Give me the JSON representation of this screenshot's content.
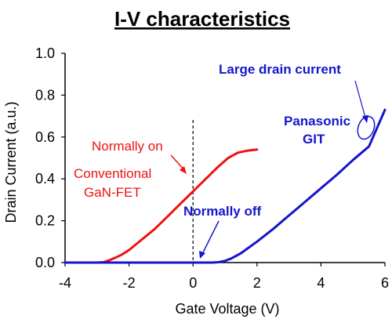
{
  "chart_data": {
    "type": "line",
    "title": "I-V characteristics",
    "xlabel": "Gate Voltage  (V)",
    "ylabel": "Drain Current  (a.u.)",
    "xlim": [
      -4,
      6
    ],
    "ylim": [
      0,
      1.0
    ],
    "x_ticks": [
      "-4",
      "-2",
      "0",
      "2",
      "4",
      "6"
    ],
    "y_ticks": [
      "0.0",
      "0.2",
      "0.4",
      "0.6",
      "0.8",
      "1.0"
    ],
    "grid": false,
    "reference_line": {
      "x": 0,
      "style": "dashed"
    },
    "series": [
      {
        "color": "#ee1111",
        "x": [
          -4.0,
          -3.0,
          -2.8,
          -2.6,
          -2.4,
          -2.2,
          -2.0,
          -1.6,
          -1.2,
          -0.8,
          -0.4,
          0.0,
          0.4,
          0.8,
          1.1,
          1.4,
          1.7,
          2.0
        ],
        "y": [
          0.0,
          0.0,
          0.002,
          0.012,
          0.025,
          0.04,
          0.06,
          0.11,
          0.16,
          0.22,
          0.28,
          0.34,
          0.4,
          0.46,
          0.5,
          0.525,
          0.535,
          0.54
        ]
      },
      {
        "color": "#1515cc",
        "x": [
          -4.0,
          0.0,
          0.6,
          0.8,
          1.0,
          1.2,
          1.5,
          2.0,
          2.5,
          3.0,
          3.5,
          4.0,
          4.5,
          5.0,
          5.5,
          6.0
        ],
        "y": [
          0.0,
          0.0,
          0.0,
          0.002,
          0.008,
          0.02,
          0.045,
          0.1,
          0.16,
          0.225,
          0.29,
          0.355,
          0.42,
          0.49,
          0.555,
          0.73
        ]
      }
    ],
    "annotations": {
      "normally_on": "Normally on",
      "conventional_line1": "Conventional",
      "conventional_line2": "GaN-FET",
      "normally_off": "Normally off",
      "panasonic_line1": "Panasonic",
      "panasonic_line2": "GIT",
      "large_drain": "Large drain current"
    }
  }
}
